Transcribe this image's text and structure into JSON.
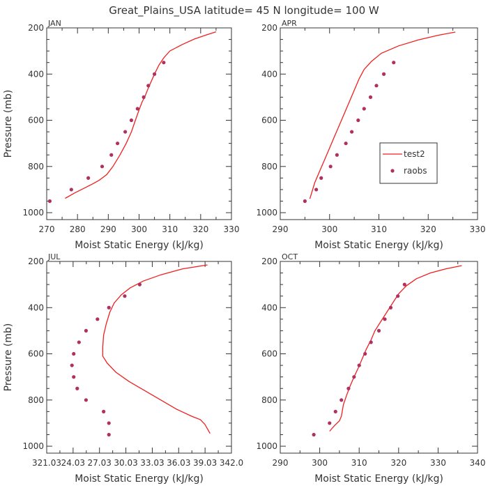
{
  "title": "Great_Plains_USA   latitude= 45 N longitude= 100 W",
  "chart_data": [
    {
      "type": "line",
      "panel_label": "JAN",
      "xlabel": "Moist Static Energy (kJ/kg)",
      "ylabel": "Pressure (mb)",
      "xlim": [
        270,
        330
      ],
      "ylim": [
        200,
        1030
      ],
      "y_inverted": true,
      "xticks": [
        270,
        280,
        290,
        300,
        310,
        320,
        330
      ],
      "xtick_labels": [
        "270",
        "280",
        "290",
        "300",
        "310",
        "320",
        "330"
      ],
      "yticks": [
        200,
        400,
        600,
        800,
        1000
      ],
      "ytick_labels": [
        "200",
        "400",
        "600",
        "800",
        "1000"
      ],
      "series": [
        {
          "name": "test2",
          "style": "line",
          "color": "#ee2020",
          "points": [
            [
              325,
              217
            ],
            [
              322,
              230
            ],
            [
              318,
              248
            ],
            [
              314,
              272
            ],
            [
              310,
              300
            ],
            [
              308,
              330
            ],
            [
              306.5,
              360
            ],
            [
              305,
              400
            ],
            [
              304,
              430
            ],
            [
              303,
              460
            ],
            [
              301.8,
              500
            ],
            [
              301,
              520
            ],
            [
              300,
              555
            ],
            [
              298.8,
              600
            ],
            [
              297.5,
              650
            ],
            [
              295.8,
              700
            ],
            [
              293.8,
              750
            ],
            [
              291.5,
              800
            ],
            [
              289.5,
              835
            ],
            [
              287,
              860
            ],
            [
              285,
              875
            ],
            [
              282,
              895
            ],
            [
              279,
              915
            ],
            [
              276,
              938
            ]
          ]
        },
        {
          "name": "raobs",
          "style": "marker",
          "color": "#b03060",
          "points": [
            [
              308,
              350
            ],
            [
              305,
              400
            ],
            [
              303,
              450
            ],
            [
              301.5,
              500
            ],
            [
              299.5,
              550
            ],
            [
              297.5,
              600
            ],
            [
              295.5,
              650
            ],
            [
              293,
              700
            ],
            [
              291,
              750
            ],
            [
              288,
              800
            ],
            [
              283.5,
              850
            ],
            [
              278,
              900
            ],
            [
              271,
              950
            ]
          ]
        }
      ]
    },
    {
      "type": "line",
      "panel_label": "APR",
      "xlabel": "Moist Static Energy (kJ/kg)",
      "ylabel": "",
      "xlim": [
        290,
        330
      ],
      "ylim": [
        200,
        1030
      ],
      "y_inverted": true,
      "xticks": [
        290,
        300,
        310,
        320,
        330
      ],
      "xtick_labels": [
        "290",
        "300",
        "310",
        "320",
        "330"
      ],
      "yticks": [
        200,
        400,
        600,
        800,
        1000
      ],
      "ytick_labels": [
        "200",
        "400",
        "600",
        "800",
        "1000"
      ],
      "legend": {
        "position": "right",
        "entries": [
          "test2",
          "raobs"
        ]
      },
      "series": [
        {
          "name": "test2",
          "style": "line",
          "color": "#ee2020",
          "points": [
            [
              325.5,
              218
            ],
            [
              322,
              232
            ],
            [
              318,
              252
            ],
            [
              314,
              278
            ],
            [
              310.5,
              310
            ],
            [
              308.5,
              345
            ],
            [
              307,
              380
            ],
            [
              306,
              420
            ],
            [
              305,
              470
            ],
            [
              304,
              520
            ],
            [
              303,
              570
            ],
            [
              302,
              620
            ],
            [
              301,
              670
            ],
            [
              300,
              720
            ],
            [
              299,
              770
            ],
            [
              298,
              820
            ],
            [
              297,
              870
            ],
            [
              296.5,
              905
            ],
            [
              296,
              940
            ]
          ]
        },
        {
          "name": "raobs",
          "style": "marker",
          "color": "#b03060",
          "points": [
            [
              313,
              350
            ],
            [
              311,
              400
            ],
            [
              309.5,
              450
            ],
            [
              308.3,
              500
            ],
            [
              307,
              550
            ],
            [
              305.8,
              600
            ],
            [
              304.5,
              650
            ],
            [
              303.3,
              700
            ],
            [
              301.5,
              750
            ],
            [
              300.2,
              800
            ],
            [
              298.3,
              850
            ],
            [
              297.3,
              900
            ],
            [
              295,
              950
            ]
          ]
        }
      ]
    },
    {
      "type": "line",
      "panel_label": "JUL",
      "xlabel": "Moist Static Energy (kJ/kg)",
      "ylabel": "Pressure (mb)",
      "xlim": [
        321.03,
        342.03
      ],
      "ylim": [
        200,
        1030
      ],
      "y_inverted": true,
      "xticks": [
        321.03,
        324.03,
        327.03,
        330.03,
        333.03,
        336.03,
        339.03,
        342.03
      ],
      "xtick_labels": [
        "321.03",
        "24.03",
        "27.03",
        "30.03",
        "33.03",
        "36.03",
        "39.03",
        "342.0"
      ],
      "yticks": [
        200,
        400,
        600,
        800,
        1000
      ],
      "ytick_labels": [
        "200",
        "400",
        "600",
        "800",
        "1000"
      ],
      "series": [
        {
          "name": "test2",
          "style": "line",
          "color": "#ee2020",
          "points": [
            [
              339.3,
              215
            ],
            [
              336.5,
              232
            ],
            [
              334,
              258
            ],
            [
              332,
              285
            ],
            [
              330.5,
              315
            ],
            [
              329.5,
              345
            ],
            [
              328.7,
              380
            ],
            [
              328.2,
              420
            ],
            [
              327.8,
              470
            ],
            [
              327.5,
              520
            ],
            [
              327.4,
              570
            ],
            [
              327.4,
              610
            ],
            [
              327.9,
              640
            ],
            [
              328.9,
              680
            ],
            [
              330.4,
              720
            ],
            [
              332.2,
              760
            ],
            [
              334,
              800
            ],
            [
              335.8,
              840
            ],
            [
              337.5,
              870
            ],
            [
              338.5,
              885
            ],
            [
              339,
              905
            ],
            [
              339.3,
              925
            ],
            [
              339.6,
              945
            ]
          ]
        },
        {
          "name": "raobs",
          "style": "marker",
          "color": "#b03060",
          "points": [
            [
              331.6,
              300
            ],
            [
              329.9,
              350
            ],
            [
              328.1,
              400
            ],
            [
              326.8,
              450
            ],
            [
              325.5,
              500
            ],
            [
              324.7,
              550
            ],
            [
              324.1,
              600
            ],
            [
              323.9,
              650
            ],
            [
              324.1,
              700
            ],
            [
              324.5,
              750
            ],
            [
              325.5,
              800
            ],
            [
              327.5,
              850
            ],
            [
              328.1,
              900
            ],
            [
              328.1,
              950
            ]
          ]
        }
      ]
    },
    {
      "type": "line",
      "panel_label": "OCT",
      "xlabel": "Moist Static Energy (kJ/kg)",
      "ylabel": "",
      "xlim": [
        290,
        340
      ],
      "ylim": [
        200,
        1030
      ],
      "y_inverted": true,
      "xticks": [
        290,
        300,
        310,
        320,
        330,
        340
      ],
      "xtick_labels": [
        "290",
        "300",
        "310",
        "320",
        "330",
        "340"
      ],
      "yticks": [
        200,
        400,
        600,
        800,
        1000
      ],
      "ytick_labels": [
        "200",
        "400",
        "600",
        "800",
        "1000"
      ],
      "series": [
        {
          "name": "test2",
          "style": "line",
          "color": "#ee2020",
          "points": [
            [
              336,
              218
            ],
            [
              332,
              232
            ],
            [
              328,
              250
            ],
            [
              324.5,
              275
            ],
            [
              322,
              305
            ],
            [
              320,
              340
            ],
            [
              318.5,
              380
            ],
            [
              317,
              420
            ],
            [
              315.5,
              460
            ],
            [
              314,
              500
            ],
            [
              313,
              540
            ],
            [
              311.8,
              580
            ],
            [
              310.8,
              620
            ],
            [
              309.8,
              660
            ],
            [
              308.7,
              700
            ],
            [
              307.7,
              740
            ],
            [
              306.8,
              780
            ],
            [
              306,
              820
            ],
            [
              305.5,
              870
            ],
            [
              305,
              890
            ],
            [
              303.8,
              910
            ],
            [
              302.5,
              935
            ]
          ]
        },
        {
          "name": "raobs",
          "style": "marker",
          "color": "#b03060",
          "points": [
            [
              321.5,
              300
            ],
            [
              319.8,
              350
            ],
            [
              318,
              400
            ],
            [
              316.5,
              450
            ],
            [
              315,
              500
            ],
            [
              313,
              550
            ],
            [
              311.5,
              600
            ],
            [
              310,
              650
            ],
            [
              308.7,
              700
            ],
            [
              307.3,
              750
            ],
            [
              305.5,
              800
            ],
            [
              304,
              850
            ],
            [
              302.5,
              900
            ],
            [
              298.5,
              950
            ]
          ]
        }
      ]
    }
  ]
}
